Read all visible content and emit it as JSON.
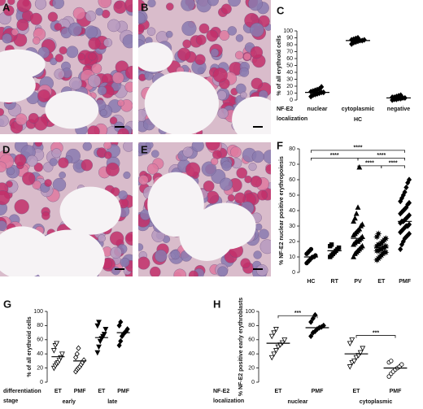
{
  "image_panels": [
    {
      "label": "A"
    },
    {
      "label": "B"
    },
    {
      "label": "D"
    },
    {
      "label": "E"
    }
  ],
  "chart_data": [
    {
      "type": "dot",
      "panel_label": "C",
      "y_label": "% of all erythroid cells",
      "categories": [
        "nuclear",
        "cytoplasmic",
        "negative"
      ],
      "groups": [
        {
          "label": "HC",
          "span": [
            0,
            2
          ]
        }
      ],
      "row_label": [
        "NF-E2",
        "localization"
      ],
      "ylim": [
        0,
        100
      ],
      "yticks": [
        0,
        10,
        20,
        30,
        40,
        50,
        60,
        70,
        80,
        90,
        100
      ],
      "color": "#000000",
      "markers": [
        {
          "shape": "diamond",
          "filled": true
        },
        {
          "shape": "diamond",
          "filled": true
        },
        {
          "shape": "diamond",
          "filled": true
        }
      ],
      "values": [
        [
          5,
          7,
          8,
          9,
          10,
          11,
          11,
          12,
          13,
          14,
          15,
          16,
          19
        ],
        [
          81,
          83,
          84,
          85,
          86,
          86,
          87,
          87,
          88,
          89,
          90
        ],
        [
          0,
          1,
          1,
          2,
          2,
          3,
          3,
          4,
          4,
          5,
          6,
          7
        ]
      ],
      "means": [
        11,
        86,
        3
      ]
    },
    {
      "type": "dot",
      "panel_label": "F",
      "y_label": "% NF-E2 nuclear positive erythropoiesis",
      "categories": [
        "HC",
        "RT",
        "PV",
        "ET",
        "PMF"
      ],
      "ylim": [
        0,
        80
      ],
      "yticks": [
        0,
        10,
        20,
        30,
        40,
        50,
        60,
        70,
        80
      ],
      "color": "#000000",
      "markers": [
        {
          "shape": "circle",
          "filled": true
        },
        {
          "shape": "square",
          "filled": true
        },
        {
          "shape": "triangle-up",
          "filled": true
        },
        {
          "shape": "star",
          "filled": true
        },
        {
          "shape": "diamond",
          "filled": true
        }
      ],
      "values": [
        [
          6,
          7,
          8,
          9,
          10,
          10,
          11,
          12,
          13,
          14,
          15
        ],
        [
          10,
          11,
          12,
          13,
          14,
          15,
          16,
          17,
          18
        ],
        [
          10,
          12,
          13,
          14,
          15,
          16,
          17,
          18,
          19,
          20,
          20,
          21,
          22,
          23,
          24,
          25,
          26,
          27,
          28,
          30,
          31,
          33,
          35,
          38,
          42,
          68
        ],
        [
          8,
          9,
          10,
          11,
          12,
          13,
          13,
          14,
          14,
          15,
          15,
          16,
          16,
          17,
          17,
          18,
          18,
          19,
          20,
          21,
          22,
          23,
          25
        ],
        [
          15,
          18,
          20,
          22,
          23,
          24,
          25,
          26,
          27,
          28,
          29,
          30,
          30,
          31,
          32,
          33,
          33,
          34,
          35,
          36,
          37,
          38,
          39,
          40,
          41,
          42,
          44,
          45,
          46,
          48,
          50,
          52,
          55,
          58,
          60
        ]
      ],
      "means": [
        10,
        14,
        22,
        16,
        33
      ],
      "brackets": [
        {
          "from": 0,
          "to": 4,
          "y": 79,
          "label": "****"
        },
        {
          "from": 0,
          "to": 2,
          "y": 74,
          "label": "****"
        },
        {
          "from": 2,
          "to": 4,
          "y": 74,
          "label": "****"
        },
        {
          "from": 2,
          "to": 3,
          "y": 69,
          "label": "****"
        },
        {
          "from": 3,
          "to": 4,
          "y": 69,
          "label": "****"
        }
      ]
    },
    {
      "type": "dot",
      "panel_label": "G",
      "y_label": "% of all erythroid cells",
      "categories": [
        "ET",
        "PMF",
        "ET",
        "PMF"
      ],
      "groups": [
        {
          "label": "early",
          "span": [
            0,
            1
          ]
        },
        {
          "label": "late",
          "span": [
            2,
            3
          ]
        }
      ],
      "row_label": [
        "differentiation",
        "stage"
      ],
      "ylim": [
        0,
        100
      ],
      "yticks": [
        0,
        20,
        40,
        60,
        80,
        100
      ],
      "color": "#000000",
      "markers": [
        {
          "shape": "triangle-down",
          "filled": false
        },
        {
          "shape": "diamond",
          "filled": false
        },
        {
          "shape": "triangle-down",
          "filled": true
        },
        {
          "shape": "diamond",
          "filled": true
        }
      ],
      "values": [
        [
          20,
          23,
          26,
          28,
          31,
          35,
          40,
          45,
          52,
          55
        ],
        [
          15,
          18,
          20,
          22,
          25,
          28,
          31,
          35,
          40,
          48
        ],
        [
          42,
          50,
          58,
          62,
          65,
          68,
          75,
          80,
          85
        ],
        [
          52,
          58,
          65,
          68,
          70,
          72,
          75,
          80,
          85
        ]
      ],
      "means": [
        36,
        30,
        63,
        70
      ]
    },
    {
      "type": "dot",
      "panel_label": "H",
      "y_label": "% NF-E2 positive early erythroblasts",
      "categories": [
        "ET",
        "PMF",
        "ET",
        "PMF"
      ],
      "groups": [
        {
          "label": "nuclear",
          "span": [
            0,
            1
          ]
        },
        {
          "label": "cytoplasmic",
          "span": [
            2,
            3
          ]
        }
      ],
      "row_label": [
        "NF-E2",
        "localization"
      ],
      "ylim": [
        0,
        100
      ],
      "yticks": [
        0,
        20,
        40,
        60,
        80,
        100
      ],
      "color": "#000000",
      "markers": [
        {
          "shape": "triangle-down",
          "filled": false
        },
        {
          "shape": "diamond",
          "filled": true
        },
        {
          "shape": "triangle-down",
          "filled": false
        },
        {
          "shape": "circle",
          "filled": false
        }
      ],
      "values": [
        [
          35,
          40,
          45,
          50,
          53,
          56,
          60,
          65,
          70,
          75
        ],
        [
          65,
          70,
          72,
          75,
          77,
          78,
          80,
          85,
          90,
          95
        ],
        [
          22,
          28,
          30,
          35,
          38,
          42,
          48,
          55,
          60
        ],
        [
          8,
          12,
          15,
          18,
          20,
          22,
          25,
          28,
          30
        ]
      ],
      "means": [
        55,
        77,
        40,
        20
      ],
      "brackets": [
        {
          "from": 0,
          "to": 1,
          "y": 94,
          "label": "***"
        },
        {
          "from": 2,
          "to": 3,
          "y": 66,
          "label": "***"
        }
      ]
    }
  ]
}
